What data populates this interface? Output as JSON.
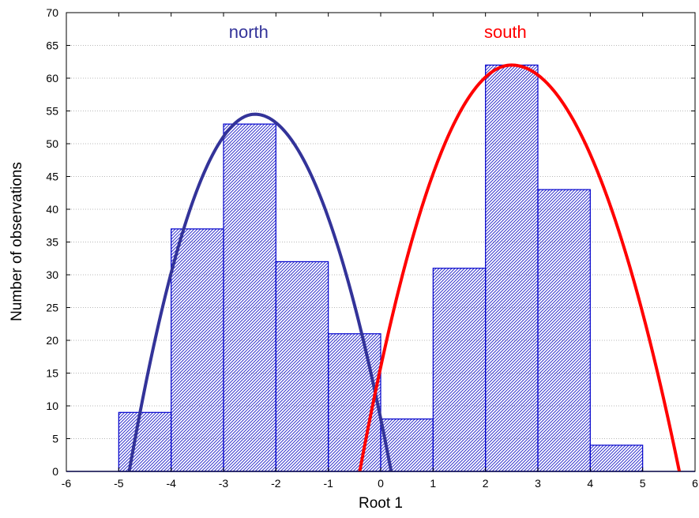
{
  "chart_data": {
    "type": "bar",
    "title": "",
    "xlabel": "Root 1",
    "ylabel": "Number of observations",
    "xlim": [
      -6,
      6
    ],
    "ylim": [
      0,
      70
    ],
    "x_ticks": [
      "-6",
      "-5",
      "-4",
      "-3",
      "-2",
      "-1",
      "0",
      "1",
      "2",
      "3",
      "4",
      "5",
      "6"
    ],
    "y_ticks": [
      "0",
      "5",
      "10",
      "15",
      "20",
      "25",
      "30",
      "35",
      "40",
      "45",
      "50",
      "55",
      "60",
      "65",
      "70"
    ],
    "grid": "horizontal dotted",
    "bins": [
      {
        "x0": -5,
        "x1": -4,
        "value": 9
      },
      {
        "x0": -4,
        "x1": -3,
        "value": 37
      },
      {
        "x0": -3,
        "x1": -2,
        "value": 53
      },
      {
        "x0": -2,
        "x1": -1,
        "value": 32
      },
      {
        "x0": -1,
        "x1": 0,
        "value": 21
      },
      {
        "x0": 0,
        "x1": 1,
        "value": 8
      },
      {
        "x0": 1,
        "x1": 2,
        "value": 31
      },
      {
        "x0": 2,
        "x1": 3,
        "value": 62
      },
      {
        "x0": 3,
        "x1": 4,
        "value": 43
      },
      {
        "x0": 4,
        "x1": 5,
        "value": 4
      }
    ],
    "series": [
      {
        "name": "north",
        "type": "curve",
        "color": "#333399",
        "peak_x": -2.4,
        "peak_y": 54.5,
        "zero_x": [
          -4.8,
          0.2
        ]
      },
      {
        "name": "south",
        "type": "curve",
        "color": "#ff0000",
        "peak_x": 2.5,
        "peak_y": 62,
        "zero_x": [
          -0.4,
          5.7
        ]
      }
    ],
    "colors": {
      "bar_fill": "#ffffff",
      "bar_hatch": "#3333cc",
      "bar_edge": "#0000cc",
      "baseline": "#0000cc",
      "grid": "#b8b8b8"
    }
  }
}
